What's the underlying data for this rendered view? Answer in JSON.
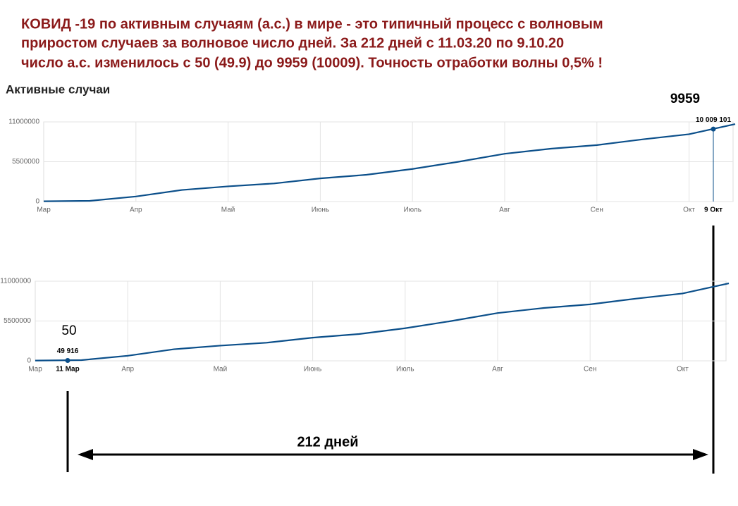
{
  "header": {
    "title_lines": [
      "КОВИД -19 по активным случаям (а.с.) в мире - это типичный процесс с волновым",
      "приростом  случаев за волновое число дней.  За 212 дней с 11.03.20  по 9.10.20",
      "число а.с. изменилось с 50 (49.9) до 9959 (10009). Точность отработки волны 0,5% !"
    ],
    "section": "Активные случаи"
  },
  "annotations": {
    "end_value": "9959",
    "start_value": "50",
    "span": "212 дней"
  },
  "chart_data": [
    {
      "type": "line",
      "categories": [
        "Мар",
        null,
        "Апр",
        null,
        "Май",
        null,
        "Июнь",
        null,
        "Июль",
        null,
        "Авг",
        null,
        "Сен",
        null,
        "Окт",
        null
      ],
      "series": [
        {
          "color": "#0b4f8a",
          "values": [
            40000,
            100000,
            700000,
            1600000,
            2100000,
            2500000,
            3200000,
            3700000,
            4500000,
            5500000,
            6600000,
            7300000,
            7800000,
            8600000,
            9300000,
            10700000
          ]
        }
      ],
      "ylim": [
        0,
        11000000
      ],
      "yticks": [
        0,
        5500000,
        11000000
      ],
      "grid": true,
      "highlight": {
        "label": "9 Окт",
        "value": 10009101,
        "value_label": "10 009 101"
      }
    },
    {
      "type": "line",
      "categories": [
        "Мар",
        null,
        "Апр",
        null,
        "Май",
        null,
        "Июнь",
        null,
        "Июль",
        null,
        "Авг",
        null,
        "Сен",
        null,
        "Окт",
        null
      ],
      "series": [
        {
          "color": "#0b4f8a",
          "values": [
            40000,
            100000,
            700000,
            1600000,
            2100000,
            2500000,
            3200000,
            3700000,
            4500000,
            5500000,
            6600000,
            7300000,
            7800000,
            8600000,
            9300000,
            10700000
          ]
        }
      ],
      "ylim": [
        0,
        11000000
      ],
      "yticks": [
        0,
        5500000,
        11000000
      ],
      "grid": true,
      "highlight": {
        "label": "11 Мар",
        "value": 49916,
        "value_label": "49 916"
      }
    }
  ]
}
